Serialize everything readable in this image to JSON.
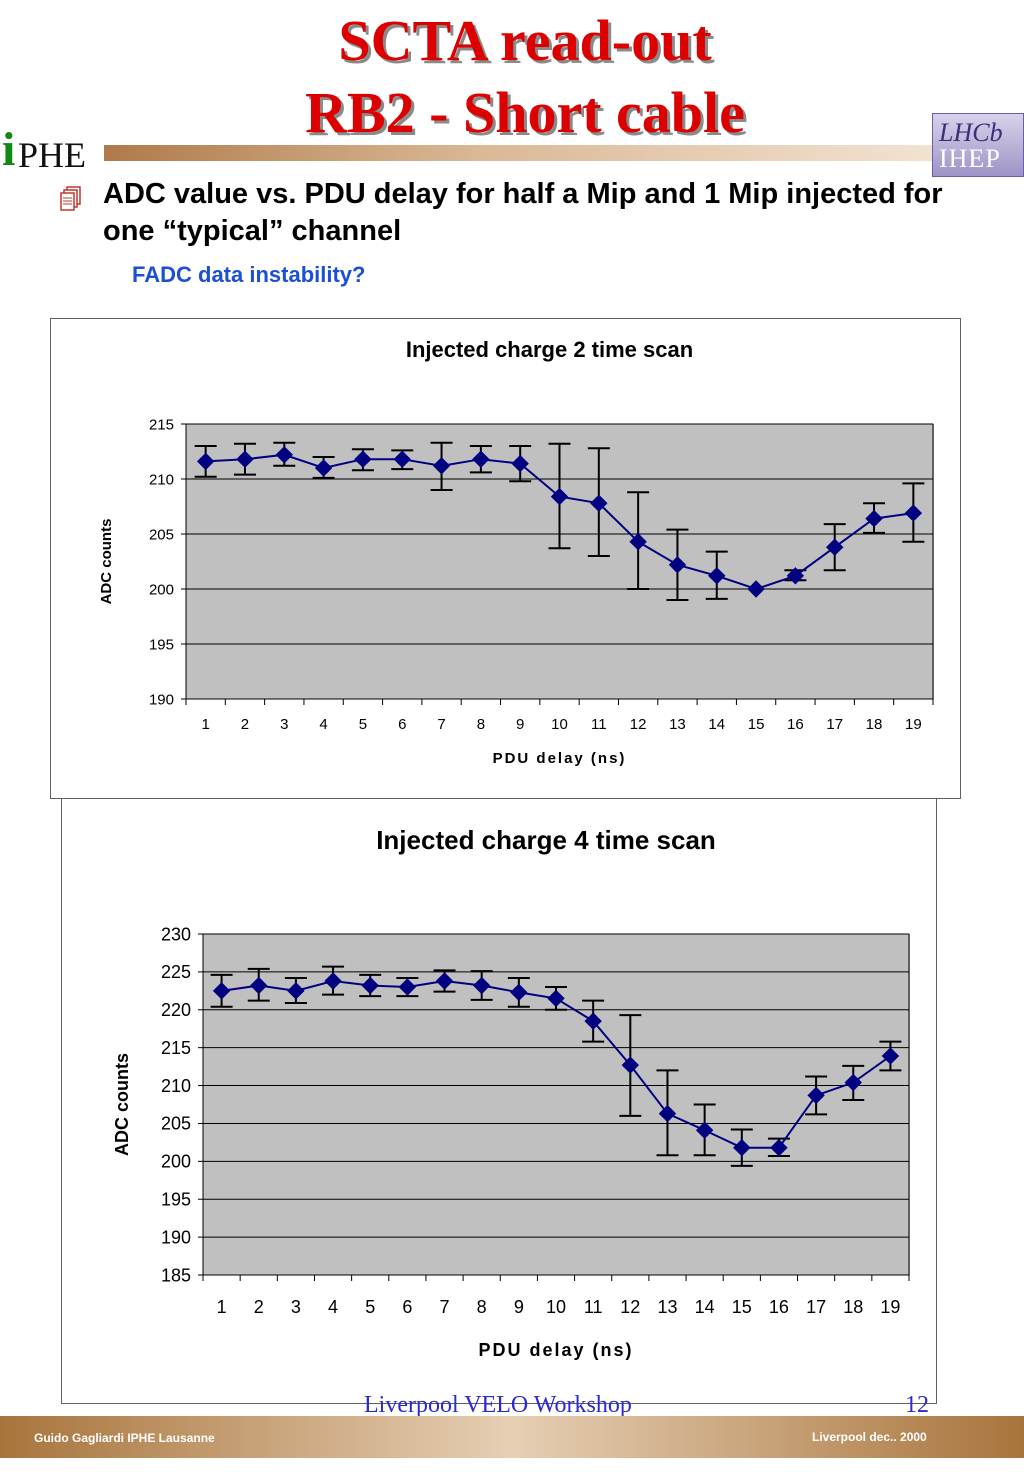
{
  "header": {
    "title_line1": "SCTA read-out",
    "title_line2": "RB2 - Short cable",
    "logo_left_i": "i",
    "logo_left_rest": "PHE",
    "logo_right_top": "LHCb",
    "logo_right_bottom": "IHEP",
    "accent_color": "#dd0000"
  },
  "bullet": {
    "icon": "document-stack-icon",
    "text": "ADC value vs. PDU delay  for half a Mip and 1 Mip injected for one “typical” channel",
    "subtext": "FADC data instability?"
  },
  "chart_data": [
    {
      "type": "line",
      "title": "Injected charge 2 time scan",
      "xlabel": "PDU delay (ns)",
      "ylabel": "ADC counts",
      "categories": [
        "1",
        "2",
        "3",
        "4",
        "5",
        "6",
        "7",
        "8",
        "9",
        "10",
        "11",
        "12",
        "13",
        "14",
        "15",
        "16",
        "17",
        "18",
        "19"
      ],
      "ylim": [
        190,
        215
      ],
      "yticks": [
        "190",
        "195",
        "200",
        "205",
        "210",
        "215"
      ],
      "grid": true,
      "series": [
        {
          "color": "#000080",
          "values": [
            211.6,
            211.8,
            212.2,
            211.0,
            211.8,
            211.8,
            211.2,
            211.8,
            211.4,
            208.4,
            207.8,
            204.3,
            202.2,
            201.2,
            200.0,
            201.2,
            203.8,
            206.4,
            206.9
          ],
          "error_low": [
            210.2,
            210.4,
            211.2,
            210.1,
            210.8,
            210.9,
            209.0,
            210.6,
            209.8,
            203.7,
            203.0,
            200.0,
            199.0,
            199.1,
            200.0,
            200.8,
            201.7,
            205.1,
            204.3
          ],
          "error_high": [
            213.0,
            213.2,
            213.3,
            212.0,
            212.7,
            212.6,
            213.3,
            213.0,
            213.0,
            213.2,
            212.8,
            208.8,
            205.4,
            203.4,
            200.0,
            201.7,
            205.9,
            207.8,
            209.6
          ]
        }
      ]
    },
    {
      "type": "line",
      "title": "Injected charge 4 time scan",
      "xlabel": "PDU delay (ns)",
      "ylabel": "ADC counts",
      "categories": [
        "1",
        "2",
        "3",
        "4",
        "5",
        "6",
        "7",
        "8",
        "9",
        "10",
        "11",
        "12",
        "13",
        "14",
        "15",
        "16",
        "17",
        "18",
        "19"
      ],
      "ylim": [
        185,
        230
      ],
      "yticks": [
        "185",
        "190",
        "195",
        "200",
        "205",
        "210",
        "215",
        "220",
        "225",
        "230"
      ],
      "grid": true,
      "series": [
        {
          "color": "#000080",
          "values": [
            222.5,
            223.2,
            222.5,
            223.8,
            223.2,
            223.0,
            223.8,
            223.2,
            222.3,
            221.5,
            218.5,
            212.7,
            206.3,
            204.1,
            201.8,
            201.8,
            208.7,
            210.4,
            213.9
          ],
          "error_low": [
            220.4,
            221.2,
            220.9,
            222.0,
            221.8,
            221.8,
            222.4,
            221.3,
            220.4,
            220.0,
            215.8,
            206.0,
            200.8,
            200.8,
            199.4,
            200.7,
            206.2,
            208.1,
            212.0
          ],
          "error_high": [
            224.6,
            225.4,
            224.2,
            225.7,
            224.6,
            224.2,
            225.2,
            225.1,
            224.2,
            223.0,
            221.2,
            219.3,
            212.0,
            207.5,
            204.2,
            203.0,
            211.2,
            212.6,
            215.8
          ]
        }
      ]
    }
  ],
  "footer": {
    "event_line": "Liverpool VELO Workshop",
    "page_number": "12",
    "author": "Guido Gagliardi  IPHE Lausanne",
    "date": "Liverpool dec.. 2000"
  }
}
